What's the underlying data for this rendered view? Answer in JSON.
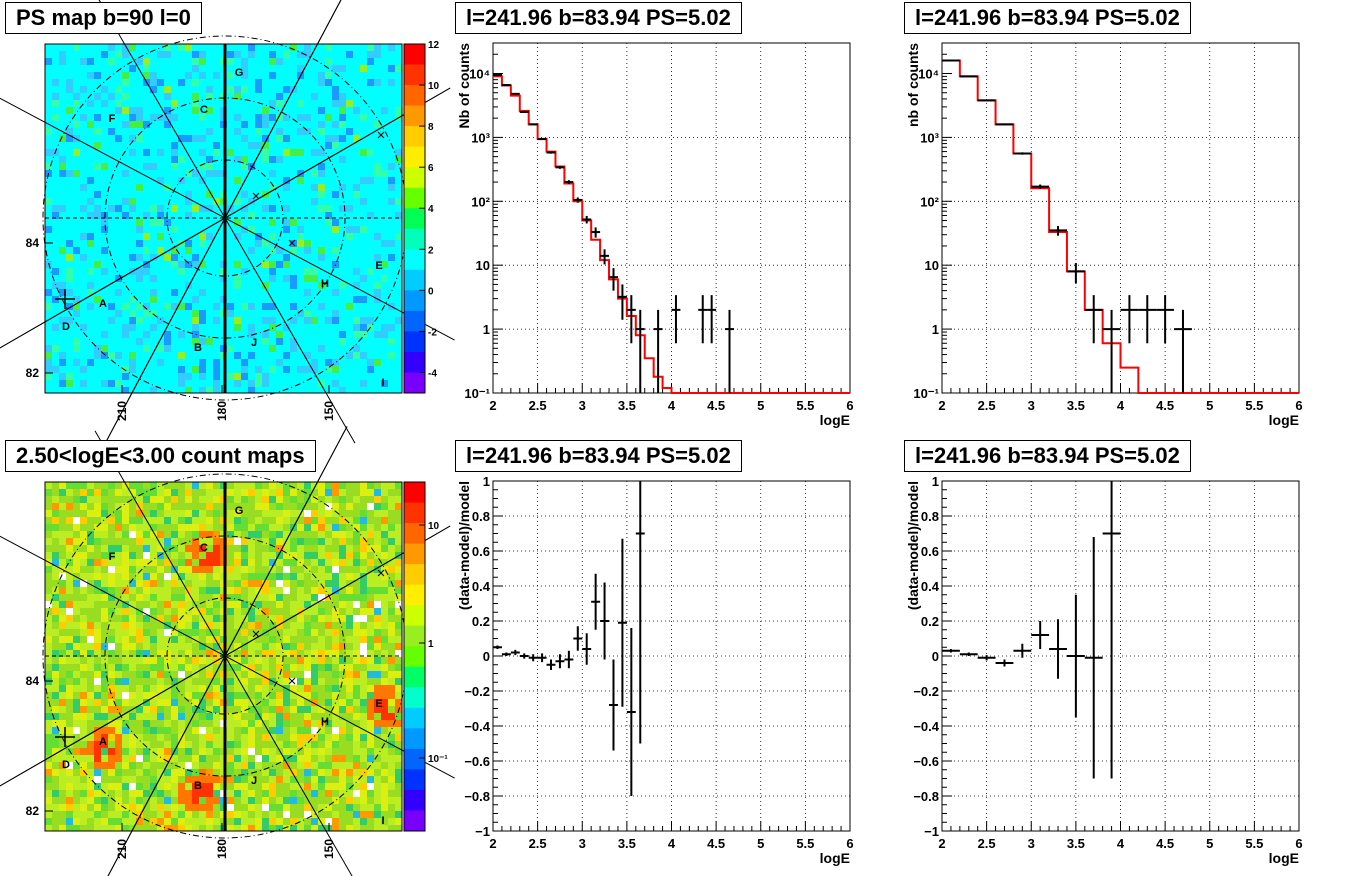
{
  "panels": [
    {
      "id": "psmap",
      "title": "PS map b=90 l=0",
      "kind": "map",
      "colorbar": {
        "type": "linear",
        "min": -5,
        "max": 12,
        "ticks": [
          "12",
          "10",
          "8",
          "6",
          "4",
          "2",
          "0",
          "-2",
          "-4"
        ],
        "tick_values": [
          12,
          10,
          8,
          6,
          4,
          2,
          0,
          -2,
          -4
        ]
      },
      "y_ticks": [
        "84",
        "82"
      ],
      "x_ticks": [
        "210",
        "180",
        "150"
      ],
      "sources": [
        "A",
        "B",
        "C",
        "D",
        "E",
        "F",
        "G",
        "H",
        "I",
        "J"
      ],
      "background_color": "#00ffff"
    },
    {
      "id": "countmap",
      "title": "2.50<logE<3.00 count maps",
      "kind": "map",
      "colorbar": {
        "type": "log",
        "ticks": [
          "10",
          "1",
          "10⁻¹"
        ]
      },
      "y_ticks": [
        "84",
        "82"
      ],
      "x_ticks": [
        "210",
        "180",
        "150"
      ],
      "sources": [
        "A",
        "B",
        "C",
        "D",
        "E",
        "F",
        "G",
        "H",
        "I",
        "J"
      ],
      "background_color": "#aadd33"
    }
  ],
  "chart_data": [
    {
      "type": "line",
      "title": "l=241.96 b=83.94 PS=5.02",
      "xlabel": "logE",
      "ylabel": "Nb of counts",
      "xlim": [
        2,
        6
      ],
      "ylim": [
        0.1,
        30000
      ],
      "yscale": "log",
      "x_ticks": [
        "2",
        "2.5",
        "3",
        "3.5",
        "4",
        "4.5",
        "5",
        "5.5",
        "6"
      ],
      "y_ticks": [
        "10⁻¹",
        "1",
        "10",
        "10²",
        "10³",
        "10⁴"
      ],
      "grid": true,
      "model": {
        "edges": [
          2,
          2.1,
          2.2,
          2.3,
          2.4,
          2.5,
          2.6,
          2.7,
          2.8,
          2.9,
          3,
          3.1,
          3.2,
          3.3,
          3.4,
          3.5,
          3.6,
          3.7,
          3.8,
          3.9,
          4,
          4.1,
          6
        ],
        "values": [
          9000,
          6500,
          4500,
          2600,
          1600,
          950,
          600,
          350,
          190,
          100,
          50,
          25,
          12,
          6,
          3,
          1.6,
          0.8,
          0.35,
          0.18,
          0.12,
          0.1,
          0.1
        ]
      },
      "data": {
        "x": [
          2.05,
          2.15,
          2.25,
          2.35,
          2.45,
          2.55,
          2.65,
          2.75,
          2.85,
          2.95,
          3.05,
          3.15,
          3.25,
          3.35,
          3.45,
          3.55,
          3.65,
          3.85,
          4.05,
          4.35,
          4.45,
          4.65
        ],
        "y": [
          9500,
          6600,
          4800,
          2500,
          1600,
          940,
          580,
          340,
          200,
          105,
          52,
          33,
          14,
          6.5,
          3.2,
          2,
          1,
          1,
          2,
          2,
          2,
          1
        ],
        "err_lo": [
          95,
          80,
          70,
          50,
          40,
          30,
          24,
          18,
          14,
          10,
          7,
          6,
          3.7,
          2.5,
          1.8,
          1.4,
          1,
          1,
          1.4,
          1.4,
          1.4,
          1
        ],
        "err_hi": [
          95,
          80,
          70,
          50,
          40,
          30,
          24,
          18,
          14,
          10,
          7,
          6,
          3.7,
          2.5,
          1.8,
          1.4,
          1,
          1,
          1.4,
          1.4,
          1.4,
          1
        ],
        "xerr": 0.05
      }
    },
    {
      "type": "line",
      "title": "l=241.96 b=83.94 PS=5.02",
      "xlabel": "logE",
      "ylabel": "nb of counts",
      "xlim": [
        2,
        6
      ],
      "ylim": [
        0.1,
        30000
      ],
      "yscale": "log",
      "x_ticks": [
        "2",
        "2.5",
        "3",
        "3.5",
        "4",
        "4.5",
        "5",
        "5.5",
        "6"
      ],
      "y_ticks": [
        "10⁻¹",
        "1",
        "10",
        "10²",
        "10³",
        "10⁴"
      ],
      "grid": true,
      "model": {
        "edges": [
          2,
          2.2,
          2.4,
          2.6,
          2.8,
          3,
          3.2,
          3.4,
          3.6,
          3.8,
          4,
          4.2,
          6
        ],
        "values": [
          16000,
          9000,
          3800,
          1600,
          560,
          160,
          33,
          8,
          2,
          0.6,
          0.25,
          0.1
        ]
      },
      "data": {
        "x": [
          2.1,
          2.3,
          2.5,
          2.7,
          2.9,
          3.1,
          3.3,
          3.5,
          3.7,
          3.9,
          4.1,
          4.3,
          4.5,
          4.7
        ],
        "y": [
          16000,
          9000,
          3800,
          1600,
          560,
          170,
          35,
          8,
          2,
          1,
          2,
          2,
          2,
          1
        ],
        "err_lo": [
          130,
          95,
          62,
          40,
          24,
          13,
          6,
          2.8,
          1.4,
          1,
          1.4,
          1.4,
          1.4,
          1
        ],
        "err_hi": [
          130,
          95,
          62,
          40,
          24,
          13,
          6,
          2.8,
          1.4,
          1,
          1.4,
          1.4,
          1.4,
          1
        ],
        "xerr": 0.1
      }
    },
    {
      "type": "scatter",
      "title": "l=241.96 b=83.94 PS=5.02",
      "xlabel": "logE",
      "ylabel": "(data-model)/model",
      "xlim": [
        2,
        6
      ],
      "ylim": [
        -1,
        1
      ],
      "x_ticks": [
        "2",
        "2.5",
        "3",
        "3.5",
        "4",
        "4.5",
        "5",
        "5.5",
        "6"
      ],
      "y_ticks": [
        "−1",
        "−0.8",
        "−0.6",
        "−0.4",
        "−0.2",
        "0",
        "0.2",
        "0.4",
        "0.6",
        "0.8",
        "1"
      ],
      "grid": true,
      "data": {
        "x": [
          2.05,
          2.15,
          2.25,
          2.35,
          2.45,
          2.55,
          2.65,
          2.75,
          2.85,
          2.95,
          3.05,
          3.15,
          3.25,
          3.35,
          3.45,
          3.55,
          3.65
        ],
        "y": [
          0.05,
          0.01,
          0.02,
          0,
          -0.01,
          -0.01,
          -0.05,
          -0.03,
          -0.02,
          0.1,
          0.04,
          0.31,
          0.2,
          -0.28,
          0.19,
          -0.32,
          0.7
        ],
        "err": [
          0.01,
          0.01,
          0.015,
          0.015,
          0.02,
          0.025,
          0.03,
          0.04,
          0.05,
          0.07,
          0.09,
          0.16,
          0.22,
          0.26,
          0.48,
          0.48,
          1.2
        ],
        "xerr": 0.05
      }
    },
    {
      "type": "scatter",
      "title": "l=241.96 b=83.94 PS=5.02",
      "xlabel": "logE",
      "ylabel": "(data-model)/model",
      "xlim": [
        2,
        6
      ],
      "ylim": [
        -1,
        1
      ],
      "x_ticks": [
        "2",
        "2.5",
        "3",
        "3.5",
        "4",
        "4.5",
        "5",
        "5.5",
        "6"
      ],
      "y_ticks": [
        "−1",
        "−0.8",
        "−0.6",
        "−0.4",
        "−0.2",
        "0",
        "0.2",
        "0.4",
        "0.6",
        "0.8",
        "1"
      ],
      "grid": true,
      "data": {
        "x": [
          2.1,
          2.3,
          2.5,
          2.7,
          2.9,
          3.1,
          3.3,
          3.5,
          3.7,
          3.9
        ],
        "y": [
          0.03,
          0.01,
          -0.01,
          -0.04,
          0.03,
          0.12,
          0.04,
          0,
          -0.01,
          0.7
        ],
        "err": [
          0.01,
          0.01,
          0.015,
          0.02,
          0.04,
          0.08,
          0.17,
          0.35,
          0.69,
          1.4
        ],
        "xerr": 0.1
      }
    }
  ]
}
